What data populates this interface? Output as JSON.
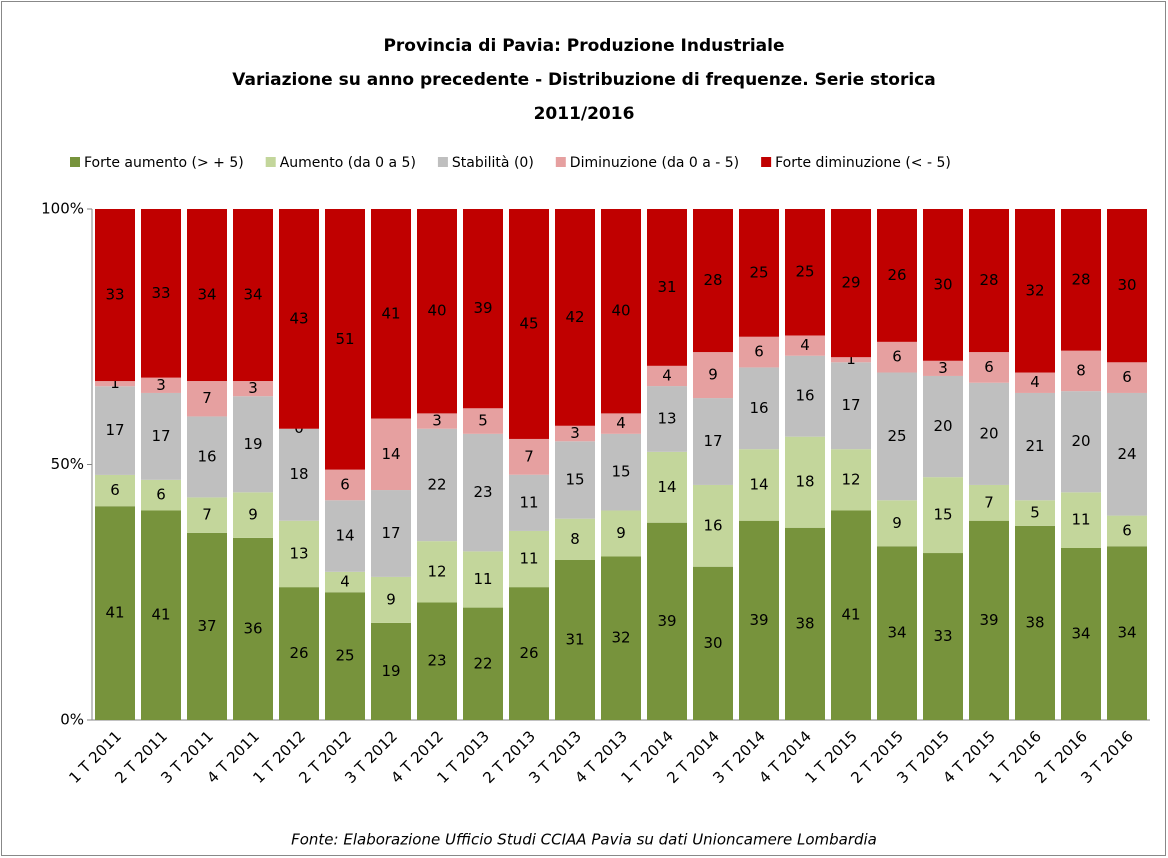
{
  "chart_data": {
    "type": "stacked_percent_bar",
    "title": [
      "Provincia di Pavia: Produzione Industriale",
      "Variazione su anno precedente - Distribuzione di frequenze. Serie storica",
      "2011/2016"
    ],
    "source": "Fonte: Elaborazione Ufficio Studi CCIAA Pavia su dati Unioncamere Lombardia",
    "categories": [
      "1 T 2011",
      "2 T 2011",
      "3 T 2011",
      "4 T 2011",
      "1 T 2012",
      "2 T 2012",
      "3 T 2012",
      "4 T 2012",
      "1 T 2013",
      "2 T 2013",
      "3 T 2013",
      "4 T 2013",
      "1 T 2014",
      "2 T 2014",
      "3 T 2014",
      "4 T 2014",
      "1 T 2015",
      "2 T 2015",
      "3 T 2015",
      "4 T 2015",
      "1 T 2016",
      "2 T 2016",
      "3 T 2016"
    ],
    "series": [
      {
        "name": "Forte aumento (> + 5)",
        "color": "#77933c",
        "values": [
          41,
          41,
          37,
          36,
          26,
          25,
          19,
          23,
          22,
          26,
          31,
          32,
          39,
          30,
          39,
          38,
          41,
          34,
          33,
          39,
          38,
          34,
          34
        ]
      },
      {
        "name": "Aumento (da 0 a 5)",
        "color": "#c3d69b",
        "values": [
          6,
          6,
          7,
          9,
          13,
          4,
          9,
          12,
          11,
          11,
          8,
          9,
          14,
          16,
          14,
          18,
          12,
          9,
          15,
          7,
          5,
          11,
          6
        ]
      },
      {
        "name": "Stabilità (0)",
        "color": "#bfbfbf",
        "values": [
          17,
          17,
          16,
          19,
          18,
          14,
          17,
          22,
          23,
          11,
          15,
          15,
          13,
          17,
          16,
          16,
          17,
          25,
          20,
          20,
          21,
          20,
          24
        ]
      },
      {
        "name": "Diminuzione (da 0 a - 5)",
        "color": "#e6a0a0",
        "values": [
          1,
          3,
          7,
          3,
          0,
          6,
          14,
          3,
          5,
          7,
          3,
          4,
          4,
          9,
          6,
          4,
          1,
          6,
          3,
          6,
          4,
          8,
          6
        ]
      },
      {
        "name": "Forte diminuzione (< - 5)",
        "color": "#c00000",
        "values": [
          33,
          33,
          34,
          34,
          43,
          51,
          41,
          40,
          39,
          45,
          42,
          40,
          31,
          28,
          25,
          25,
          29,
          26,
          30,
          28,
          32,
          28,
          30
        ]
      }
    ],
    "ylim": [
      0,
      100
    ],
    "yticks": [
      {
        "value": 0,
        "label": "0%"
      },
      {
        "value": 50,
        "label": "50%"
      },
      {
        "value": 100,
        "label": "100%"
      }
    ],
    "legend": "top"
  }
}
